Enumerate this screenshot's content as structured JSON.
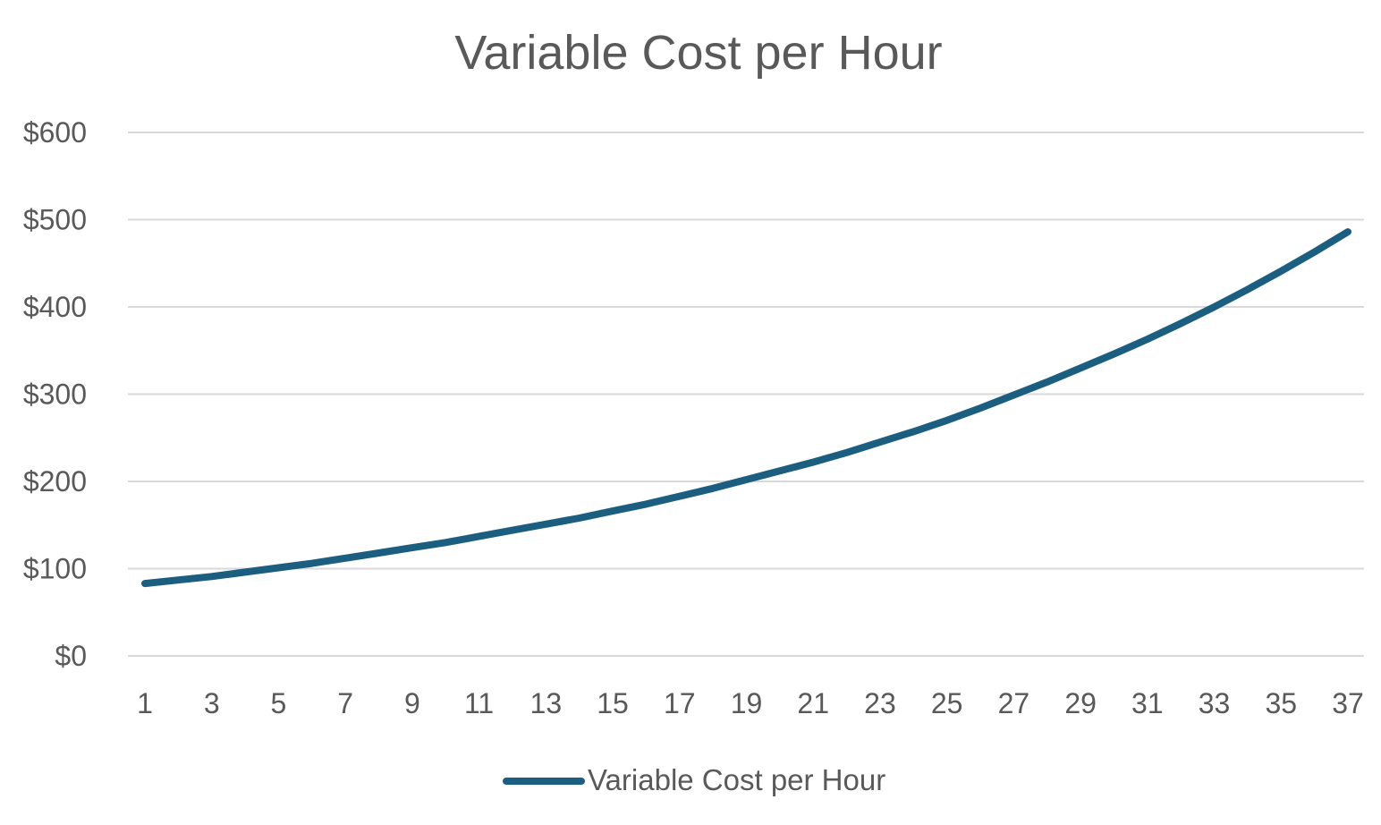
{
  "chart_data": {
    "type": "line",
    "title": "Variable Cost per Hour",
    "xlabel": "",
    "ylabel": "",
    "x": [
      1,
      2,
      3,
      4,
      5,
      6,
      7,
      8,
      9,
      10,
      11,
      12,
      13,
      14,
      15,
      16,
      17,
      18,
      19,
      20,
      21,
      22,
      23,
      24,
      25,
      26,
      27,
      28,
      29,
      30,
      31,
      32,
      33,
      34,
      35,
      36,
      37
    ],
    "x_tick_labels": [
      "1",
      "3",
      "5",
      "7",
      "9",
      "11",
      "13",
      "15",
      "17",
      "19",
      "21",
      "23",
      "25",
      "27",
      "29",
      "31",
      "33",
      "35",
      "37"
    ],
    "y_tick_labels": [
      "$0",
      "$100",
      "$200",
      "$300",
      "$400",
      "$500",
      "$600"
    ],
    "y_ticks": [
      0,
      100,
      200,
      300,
      400,
      500,
      600
    ],
    "ylim": [
      0,
      600
    ],
    "grid": true,
    "legend_position": "bottom",
    "series": [
      {
        "name": "Variable Cost per Hour",
        "color": "#1b5e80",
        "values": [
          83,
          87,
          91,
          96,
          101,
          106,
          112,
          118,
          124,
          130,
          137,
          144,
          151,
          158,
          166,
          174,
          183,
          192,
          202,
          212,
          222,
          233,
          245,
          257,
          270,
          284,
          299,
          314,
          330,
          346,
          363,
          381,
          400,
          420,
          441,
          463,
          486
        ]
      }
    ]
  }
}
